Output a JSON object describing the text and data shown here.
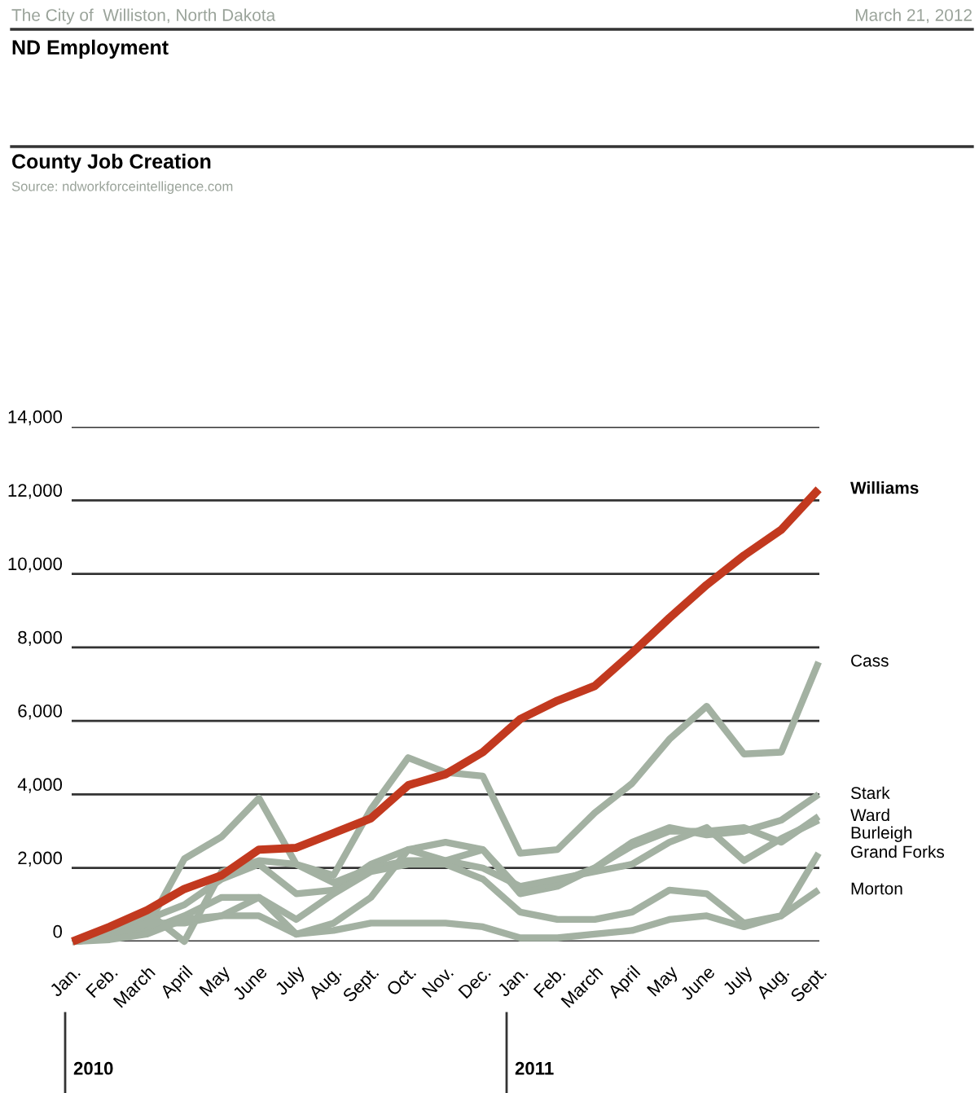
{
  "chart_data": {
    "type": "line",
    "title": "ND Employment",
    "subtitle": "County Job Creation",
    "annotations": [
      "The City of  Williston, North Dakota",
      "March 21, 2012",
      "Source: ndworkforceintelligence.com",
      "2010",
      "2011"
    ],
    "categories": [
      "Jan.",
      "Feb.",
      "March",
      "April",
      "May",
      "June",
      "July",
      "Aug.",
      "Sept.",
      "Oct.",
      "Nov.",
      "Dec.",
      "Jan.",
      "Feb.",
      "March",
      "April",
      "May",
      "June",
      "July",
      "Aug.",
      "Sept."
    ],
    "series": [
      {
        "name": "Cass",
        "color": "#a3b1a2",
        "values": [
          0,
          100,
          400,
          2250,
          2850,
          3900,
          2100,
          1800,
          3600,
          5000,
          4600,
          4500,
          2400,
          2500,
          3500,
          4300,
          5500,
          6400,
          5100,
          5150,
          7600
        ]
      },
      {
        "name": "Stark",
        "color": "#a3b1a2",
        "values": [
          0,
          100,
          300,
          700,
          1200,
          1200,
          200,
          500,
          1200,
          2500,
          2200,
          2500,
          1300,
          1500,
          2000,
          2700,
          3100,
          2900,
          3000,
          3300,
          4000
        ]
      },
      {
        "name": "Ward",
        "color": "#a3b1a2",
        "values": [
          0,
          200,
          600,
          1000,
          1700,
          2100,
          1300,
          1400,
          2100,
          2500,
          2700,
          2500,
          1400,
          1600,
          2000,
          2600,
          3000,
          3000,
          3100,
          2700,
          3400
        ]
      },
      {
        "name": "Burleigh",
        "color": "#a3b1a2",
        "values": [
          0,
          150,
          800,
          0,
          1900,
          2200,
          2100,
          1600,
          2000,
          2200,
          2200,
          2000,
          1500,
          1700,
          1900,
          2100,
          2700,
          3100,
          2200,
          2800,
          3300
        ]
      },
      {
        "name": "Grand Forks",
        "color": "#a3b1a2",
        "values": [
          0,
          100,
          500,
          500,
          700,
          1200,
          600,
          1300,
          1900,
          2100,
          2100,
          1700,
          800,
          600,
          600,
          800,
          1400,
          1300,
          500,
          700,
          2400
        ]
      },
      {
        "name": "Morton",
        "color": "#a3b1a2",
        "values": [
          0,
          50,
          200,
          600,
          700,
          700,
          200,
          300,
          500,
          500,
          500,
          400,
          100,
          100,
          200,
          300,
          600,
          700,
          400,
          700,
          1400
        ]
      },
      {
        "name": "Williams",
        "color": "#c2391f",
        "values": [
          0,
          400,
          850,
          1430,
          1800,
          2500,
          2550,
          2950,
          3350,
          4250,
          4550,
          5150,
          6050,
          6550,
          6950,
          7850,
          8800,
          9700,
          10500,
          11200,
          12300
        ]
      }
    ],
    "ylim": [
      0,
      14000
    ],
    "yticks": [
      0,
      {
        "value": 2000,
        "label": "2,000"
      },
      {
        "value": 4000,
        "label": "4,000"
      },
      {
        "value": 6000,
        "label": "6,000"
      },
      {
        "value": 8000,
        "label": "8,000"
      },
      {
        "value": 10000,
        "label": "10,000"
      },
      {
        "value": 12000,
        "label": "12,000"
      },
      {
        "value": 14000,
        "label": "14,000"
      }
    ],
    "grid": "y",
    "legend": false,
    "marker": "none",
    "line_style": "solid"
  }
}
